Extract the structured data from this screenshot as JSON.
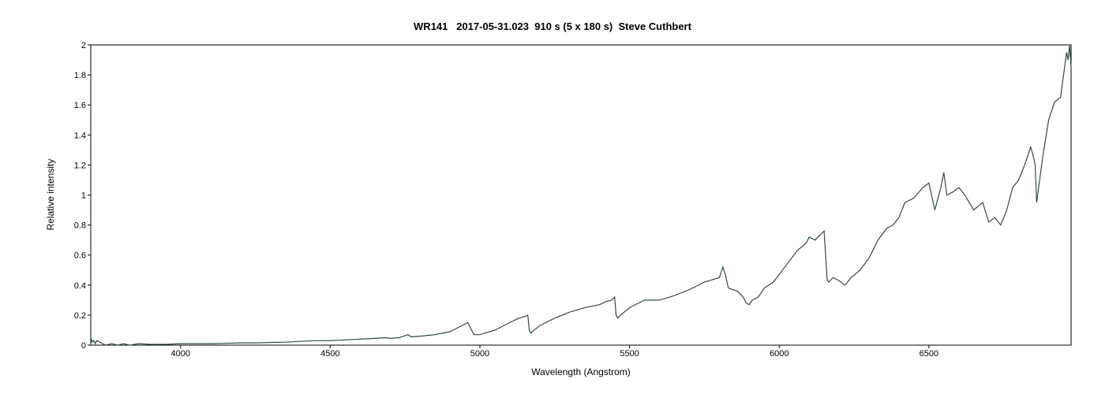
{
  "chart_data": {
    "type": "line",
    "title": "WR141   2017-05-31.023  910 s (5 x 180 s)  Steve Cuthbert",
    "xlabel": "Wavelength (Angstrom)",
    "ylabel": "Relative intensity",
    "xlim": [
      3700,
      6975
    ],
    "ylim": [
      0,
      2
    ],
    "x_ticks": [
      4000,
      4500,
      5000,
      5500,
      6000,
      6500
    ],
    "x_tick_labels": [
      "4000",
      "4500",
      "5000",
      "5500",
      "6000",
      "6500"
    ],
    "y_ticks": [
      0,
      0.2,
      0.4,
      0.6,
      0.8,
      1,
      1.2,
      1.4,
      1.6,
      1.8,
      2
    ],
    "y_tick_labels": [
      "0",
      "0.2",
      "0.4",
      "0.6",
      "0.8",
      "1",
      "1.2",
      "1.4",
      "1.6",
      "1.8",
      "2"
    ],
    "grid": false,
    "line_color": "#2f4a48",
    "series": [
      {
        "x": [
          3700,
          3705,
          3710,
          3715,
          3720,
          3730,
          3740,
          3750,
          3770,
          3790,
          3810,
          3830,
          3860,
          3900,
          3950,
          4000,
          4050,
          4100,
          4150,
          4200,
          4250,
          4300,
          4350,
          4400,
          4450,
          4500,
          4550,
          4600,
          4650,
          4686,
          4700,
          4730,
          4760,
          4770,
          4800,
          4850,
          4900,
          4930,
          4950,
          4960,
          4980,
          5000,
          5050,
          5100,
          5130,
          5150,
          5160,
          5165,
          5170,
          5175,
          5200,
          5250,
          5300,
          5350,
          5400,
          5420,
          5440,
          5450,
          5455,
          5460,
          5470,
          5500,
          5550,
          5600,
          5650,
          5700,
          5750,
          5800,
          5812,
          5820,
          5830,
          5860,
          5880,
          5890,
          5900,
          5910,
          5930,
          5950,
          5980,
          6000,
          6030,
          6060,
          6090,
          6100,
          6120,
          6140,
          6150,
          6155,
          6160,
          6165,
          6180,
          6200,
          6220,
          6240,
          6270,
          6300,
          6330,
          6360,
          6380,
          6400,
          6420,
          6450,
          6480,
          6500,
          6520,
          6540,
          6550,
          6560,
          6580,
          6600,
          6620,
          6650,
          6680,
          6700,
          6720,
          6740,
          6760,
          6780,
          6800,
          6820,
          6840,
          6850,
          6855,
          6860,
          6870,
          6880,
          6900,
          6920,
          6940,
          6950,
          6960,
          6965,
          6970,
          6975
        ],
        "y": [
          0.05,
          0.02,
          0.03,
          0.01,
          0.03,
          0.02,
          0.01,
          0.0,
          0.01,
          0.0,
          0.01,
          0.0,
          0.01,
          0.005,
          0.005,
          0.01,
          0.01,
          0.01,
          0.012,
          0.015,
          0.015,
          0.018,
          0.02,
          0.025,
          0.03,
          0.03,
          0.035,
          0.04,
          0.045,
          0.05,
          0.045,
          0.05,
          0.07,
          0.055,
          0.06,
          0.07,
          0.09,
          0.12,
          0.14,
          0.15,
          0.07,
          0.07,
          0.1,
          0.15,
          0.18,
          0.19,
          0.2,
          0.1,
          0.08,
          0.09,
          0.13,
          0.18,
          0.22,
          0.25,
          0.27,
          0.29,
          0.3,
          0.32,
          0.2,
          0.18,
          0.2,
          0.25,
          0.3,
          0.3,
          0.33,
          0.37,
          0.42,
          0.45,
          0.52,
          0.47,
          0.38,
          0.36,
          0.32,
          0.28,
          0.27,
          0.3,
          0.32,
          0.38,
          0.42,
          0.47,
          0.55,
          0.63,
          0.68,
          0.72,
          0.7,
          0.74,
          0.76,
          0.6,
          0.44,
          0.42,
          0.45,
          0.43,
          0.4,
          0.45,
          0.5,
          0.58,
          0.7,
          0.78,
          0.8,
          0.85,
          0.95,
          0.98,
          1.05,
          1.08,
          0.9,
          1.05,
          1.15,
          1.0,
          1.02,
          1.05,
          1.0,
          0.9,
          0.95,
          0.82,
          0.85,
          0.8,
          0.9,
          1.05,
          1.1,
          1.2,
          1.32,
          1.25,
          1.2,
          0.95,
          1.1,
          1.25,
          1.5,
          1.62,
          1.65,
          1.8,
          1.95,
          1.9,
          2.0,
          1.85
        ]
      }
    ]
  }
}
